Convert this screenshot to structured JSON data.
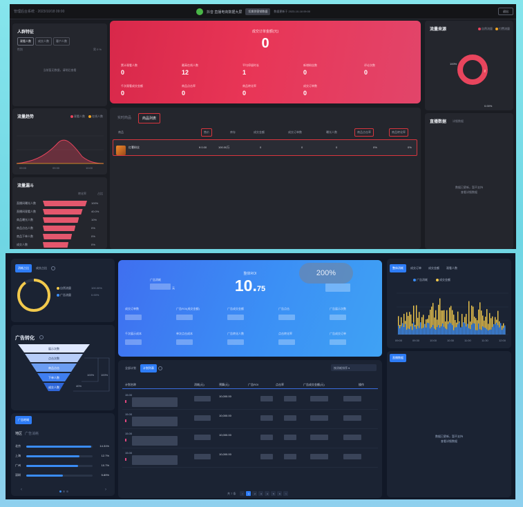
{
  "top": {
    "header": {
      "left_text": "管理后台系统 · 2023/10/18 09:00",
      "title": "抖音 直播电商数据大屏",
      "badge": "切换到营销数据",
      "note": "数据更新于 2023-10-18 09:00",
      "right_button": "退出"
    },
    "crowd": {
      "title": "人群特征",
      "chips": [
        "观看人数",
        "成交人数",
        "客户人数"
      ],
      "sub": "性别",
      "value": "男 0 %",
      "empty": "当前暂无数据，请稍后查看"
    },
    "hero": {
      "label": "成交订单金额(元)",
      "value": "0",
      "stats": [
        {
          "label": "累计观看人数",
          "value": "0"
        },
        {
          "label": "最高在线人数",
          "value": "12"
        },
        {
          "label": "平均停留时长",
          "value": "1"
        },
        {
          "label": "新增粉丝数",
          "value": "0"
        },
        {
          "label": "评论次数",
          "value": "0"
        },
        {
          "label": "千次观看成交金额",
          "value": "0"
        },
        {
          "label": "商品点击率",
          "value": "0"
        },
        {
          "label": "商品转化率",
          "value": "0"
        },
        {
          "label": "成交订单数",
          "value": "0"
        }
      ]
    },
    "source": {
      "title": "流量来源",
      "legend": [
        "自然流量",
        "付费流量"
      ],
      "legend_colors": [
        "#e8455d",
        "#f5a623"
      ],
      "pct_a": "100%",
      "pct_b": "0.00%"
    },
    "trend": {
      "title": "流量趋势",
      "legend": [
        "观看人数",
        "在线人数"
      ],
      "x_labels": [
        "09:00",
        "09:30",
        "10:00"
      ]
    },
    "table": {
      "tabs": [
        "实时商品",
        "商品列表"
      ],
      "active_tab": 1,
      "headers": [
        "商品",
        "售价",
        "库存",
        "成交金额",
        "成交订单数",
        "曝光人数",
        "商品点击率",
        "商品转化率"
      ],
      "row": {
        "name": "红薯粉丝",
        "price": "¥ 0.00",
        "stock": "100.00万",
        "amount": "0",
        "orders": "0",
        "expo": "0",
        "ctr": "0%",
        "cvr": "0%"
      }
    },
    "right2": {
      "title": "直播数据",
      "sub": "详细数据",
      "empty_line1": "数据已更新，暂不支持",
      "empty_line2": "查看详细数据"
    },
    "rank": {
      "title": "流量漏斗",
      "sub1": "转化率",
      "sub2": "占比",
      "items": [
        {
          "name": "直播间曝光人数",
          "pct": "100%",
          "fill": 1.0
        },
        {
          "name": "直播间观看人数",
          "pct": "40.0%",
          "fill": 0.9
        },
        {
          "name": "商品曝光人数",
          "pct": "10%",
          "fill": 0.82
        },
        {
          "name": "商品点击人数",
          "pct": "0%",
          "fill": 0.74
        },
        {
          "name": "商品下单人数",
          "pct": "0%",
          "fill": 0.66
        },
        {
          "name": "成交人数",
          "pct": "0%",
          "fill": 0.58
        }
      ]
    }
  },
  "bottom": {
    "left1": {
      "tabs": [
        "消耗占比",
        "成交占比"
      ],
      "legend": [
        {
          "name": "自然流量",
          "value": "100.00%",
          "color": "#f2c94c"
        },
        {
          "name": "广告流量",
          "value": "0.00%",
          "color": "#3a8cf5"
        }
      ]
    },
    "funnel": {
      "title": "广告转化",
      "levels": [
        "展示次数",
        "点击次数",
        "商品点击",
        "下单人数",
        "成交人数"
      ],
      "rates": [
        "100%",
        "100%",
        "40%"
      ]
    },
    "region": {
      "button": "广告地域",
      "head": "地区",
      "head_sub": "广告消耗",
      "items": [
        {
          "name": "北京",
          "pct": "14.31%",
          "fill": 0.98
        },
        {
          "name": "上海",
          "pct": "12.7%",
          "fill": 0.8
        },
        {
          "name": "广州",
          "pct": "10.7%",
          "fill": 0.78
        },
        {
          "name": "深圳",
          "pct": "5.89%",
          "fill": 0.55
        }
      ]
    },
    "hero": {
      "roi_label": "整体ROI",
      "roi_int": "10.",
      "roi_dec": "75",
      "zoom": "200%",
      "spend_label": "广告消耗",
      "spend_unit": "元",
      "stats": [
        "成交订单数",
        "广告ROI(成交金额)",
        "广告成交金额",
        "广告点击",
        "广告展示次数",
        "千次展示成本",
        "单次点击成本",
        "广告转化人数",
        "点击转化率",
        "广告成交订单"
      ]
    },
    "table": {
      "tabs": [
        "全部计划",
        "计划列表"
      ],
      "sort": "按消耗排序",
      "headers": [
        "计划名称",
        "消耗(元)",
        "预算(元)",
        "广告ROI",
        "点击率",
        "广告成交金额(元)",
        "操作"
      ],
      "rows": [
        {
          "id": "15.00",
          "budget": "10,000.00"
        },
        {
          "id": "15.00",
          "budget": "10,000.00"
        },
        {
          "id": "15.00",
          "budget": "10,000.00"
        },
        {
          "id": "15.00",
          "budget": "10,000.00"
        }
      ],
      "pager_text": "共 7 条",
      "pages": [
        "<",
        "1",
        "2",
        "3",
        "4",
        "5",
        "6",
        ">"
      ]
    },
    "chart": {
      "tabs": [
        "整体消耗",
        "成交订单",
        "成交金额",
        "观看人数"
      ],
      "legend": [
        "广告消耗",
        "成交金额"
      ],
      "legend_colors": [
        "#3a8cf5",
        "#f2c94c"
      ],
      "x_labels": [
        "09:00",
        "09:30",
        "10:00",
        "10:30",
        "11:00",
        "11:30",
        "12:00"
      ]
    },
    "right2": {
      "button": "直播数据",
      "empty_line1": "数据已更新，暂不支持",
      "empty_line2": "查看详细数据"
    }
  }
}
